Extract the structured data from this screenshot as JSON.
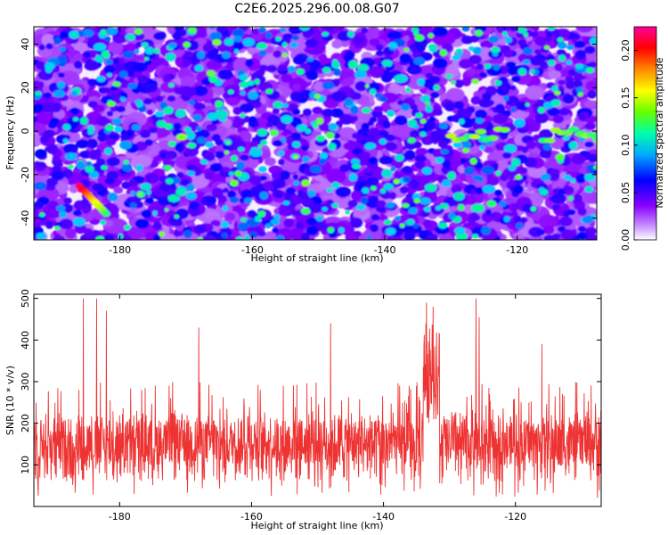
{
  "title": "C2E6.2025.296.00.08.G07",
  "colors": {
    "snr_line": "#ee3333",
    "axis": "#000000",
    "background": "#ffffff"
  },
  "chart_data": [
    {
      "type": "heatmap",
      "xlabel": "Height of straight line (km)",
      "ylabel": "Frequency (Hz)",
      "xlim": [
        -193,
        -108
      ],
      "ylim": [
        -50,
        48
      ],
      "xticks": [
        {
          "value": -180,
          "label": "-180"
        },
        {
          "value": -160,
          "label": "-160"
        },
        {
          "value": -140,
          "label": "-140"
        },
        {
          "value": -120,
          "label": "-120"
        }
      ],
      "yticks": [
        {
          "value": -40,
          "label": "-40"
        },
        {
          "value": -20,
          "label": "-20"
        },
        {
          "value": 0,
          "label": "0"
        },
        {
          "value": 20,
          "label": "20"
        },
        {
          "value": 40,
          "label": "40"
        }
      ],
      "colorbar": {
        "label": "Normalized spectral amplitude",
        "range": [
          0,
          0.225
        ],
        "ticks": [
          {
            "value": 0,
            "label": "0.00"
          },
          {
            "value": 0.05,
            "label": "0.05"
          },
          {
            "value": 0.1,
            "label": "0.10"
          },
          {
            "value": 0.15,
            "label": "0.15"
          },
          {
            "value": 0.2,
            "label": "0.20"
          }
        ],
        "colormap": [
          "#ffffff",
          "#cc99ff",
          "#8800ff",
          "#0000ff",
          "#00ccff",
          "#00ff88",
          "#aaff00",
          "#ffff00",
          "#ff8800",
          "#ff0000",
          "#ff00aa"
        ]
      },
      "notable_features": [
        {
          "x": -186,
          "y": -27,
          "peak": 0.22,
          "note": "strong streak"
        },
        {
          "x": -126,
          "y": -2,
          "peak": 0.12
        },
        {
          "x": -112,
          "y": -2,
          "peak": 0.12
        }
      ]
    },
    {
      "type": "line",
      "xlabel": "Height of straight line (km)",
      "ylabel": "SNR (10 * v/v)",
      "xlim": [
        -193,
        -107
      ],
      "ylim": [
        0,
        510
      ],
      "xticks": [
        {
          "value": -180,
          "label": "-180"
        },
        {
          "value": -160,
          "label": "-160"
        },
        {
          "value": -140,
          "label": "-140"
        },
        {
          "value": -120,
          "label": "-120"
        }
      ],
      "yticks": [
        {
          "value": 100,
          "label": "100"
        },
        {
          "value": 200,
          "label": "200"
        },
        {
          "value": 300,
          "label": "300"
        },
        {
          "value": 400,
          "label": "400"
        },
        {
          "value": 500,
          "label": "500"
        }
      ],
      "series": [
        {
          "color": "#ee3333",
          "mean_value": 150,
          "typical_spread": [
            60,
            300
          ],
          "samples": 1800,
          "x_range": [
            -193,
            -107
          ],
          "spikes": [
            {
              "x": -185.5,
              "y": 500
            },
            {
              "x": -183.5,
              "y": 500
            },
            {
              "x": -182,
              "y": 470
            },
            {
              "x": -168,
              "y": 430
            },
            {
              "x": -148,
              "y": 440
            },
            {
              "x": -133.5,
              "y": 490
            },
            {
              "x": -132.5,
              "y": 480
            },
            {
              "x": -126,
              "y": 500
            },
            {
              "x": -125.5,
              "y": 455
            },
            {
              "x": -116,
              "y": 390
            }
          ],
          "elevated_region": {
            "x": [
              -134,
              -131.5
            ],
            "min": 200,
            "max": 440
          }
        }
      ]
    }
  ]
}
